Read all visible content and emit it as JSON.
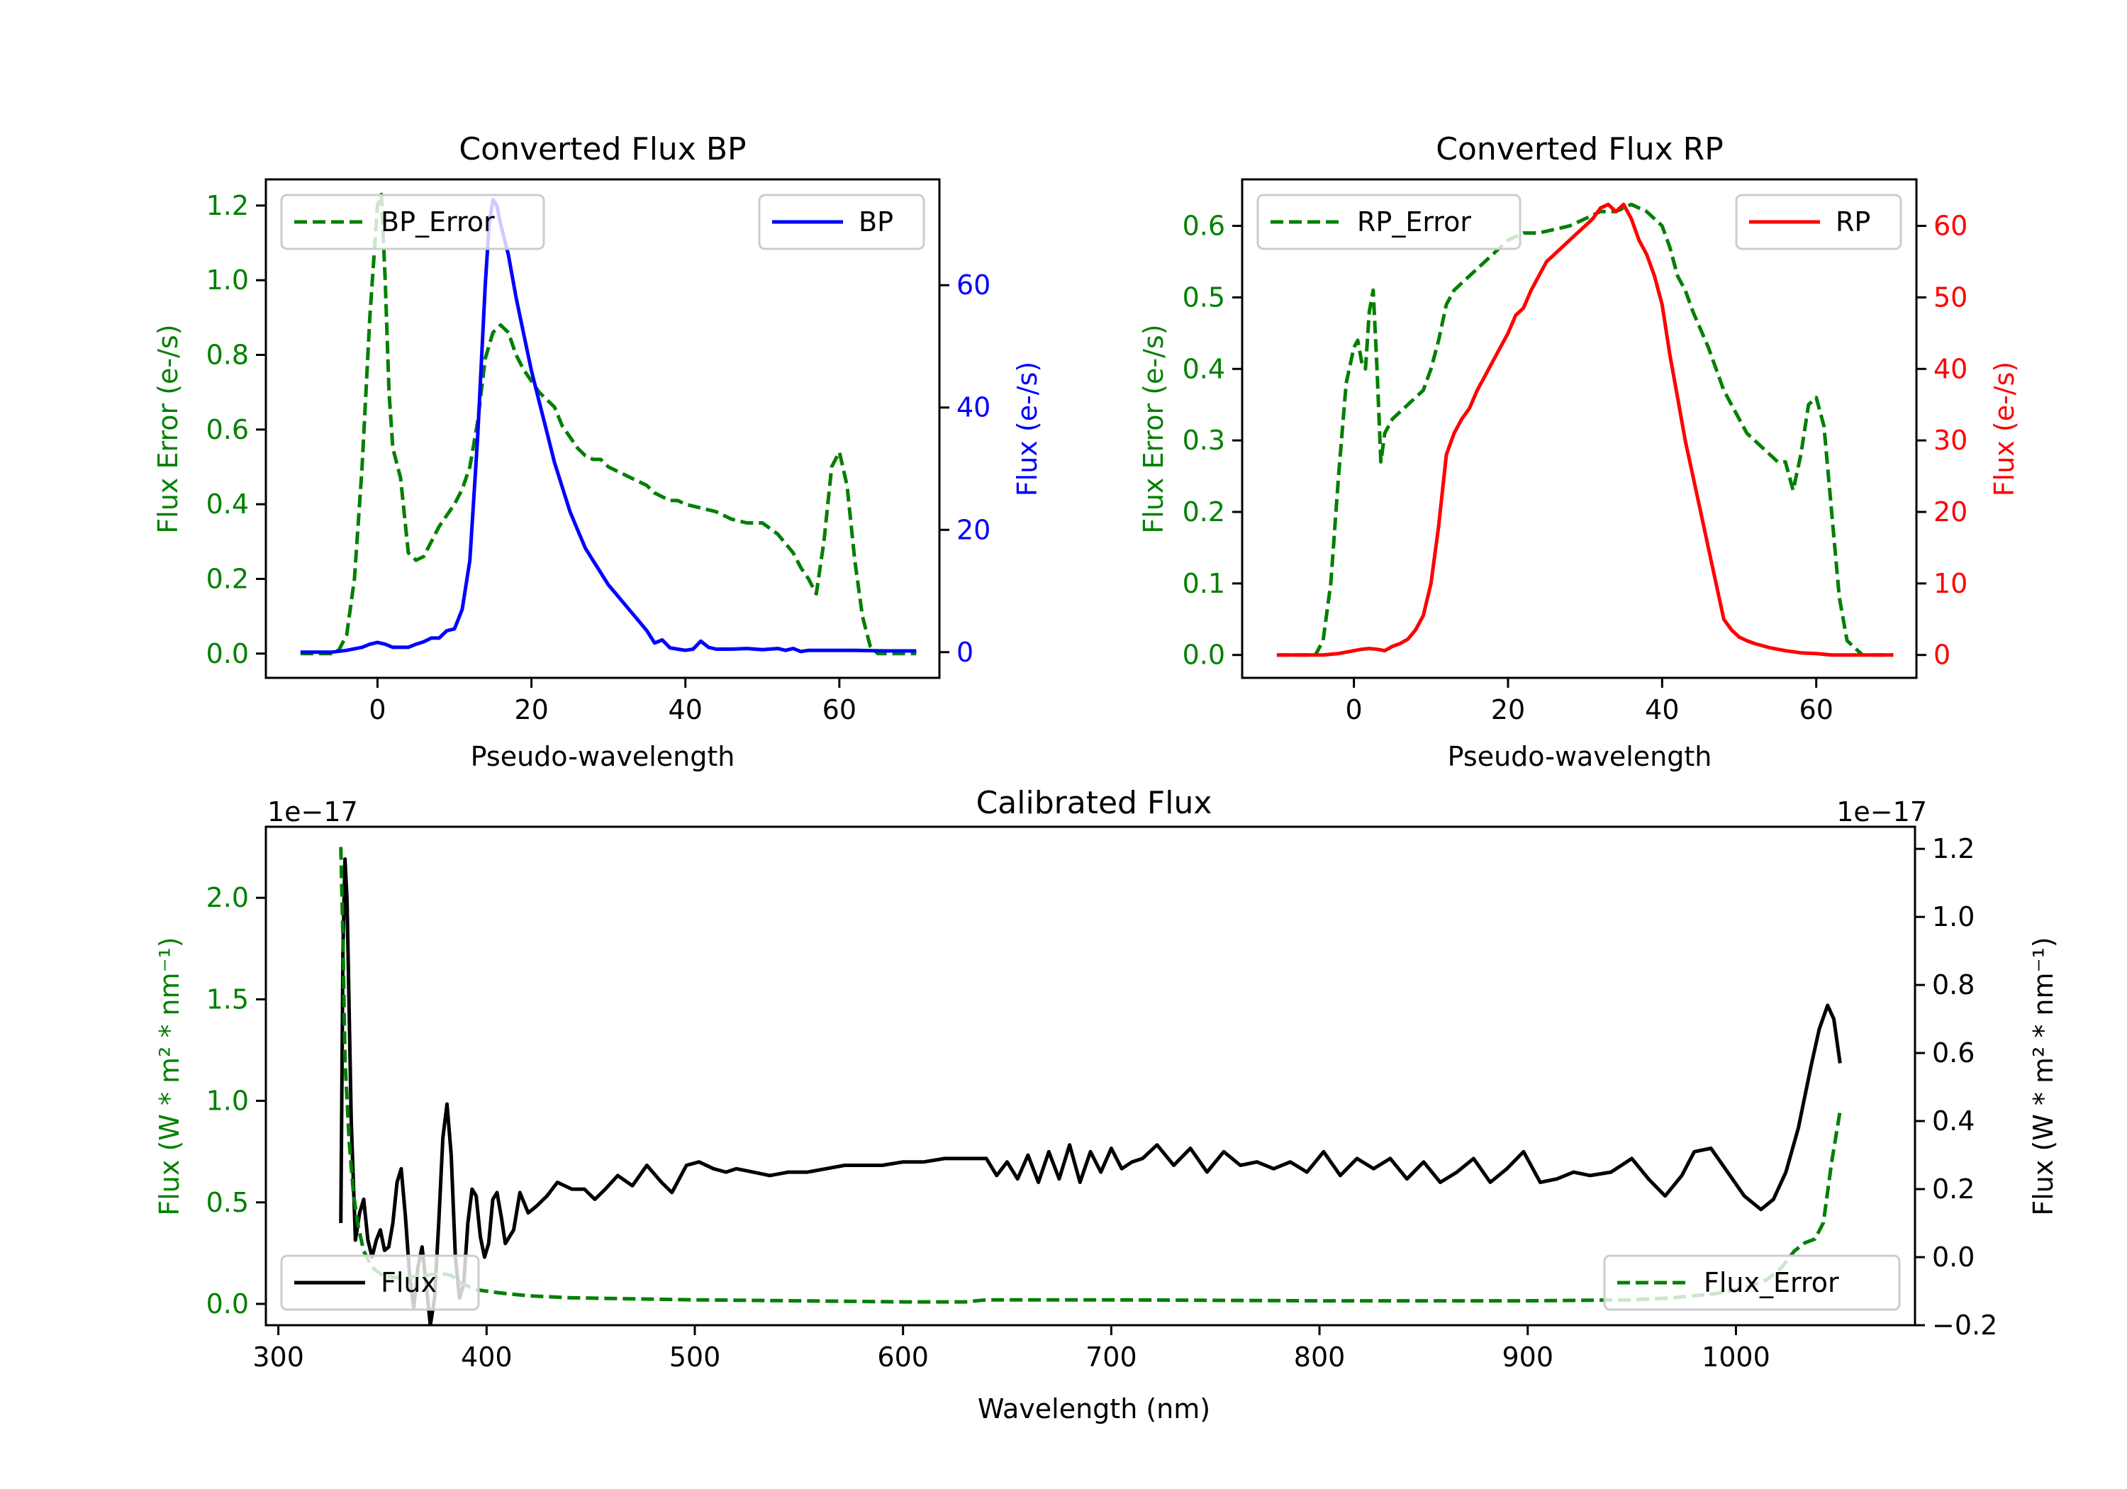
{
  "figure": {
    "colors": {
      "error": "#008000",
      "bp": "#0000ff",
      "rp": "#ff0000",
      "flux": "#000000",
      "axis": "#000000",
      "legend_border": "#cccccc"
    }
  },
  "chart_data": [
    {
      "id": "bp",
      "type": "line",
      "title": "Converted Flux BP",
      "xlabel": "Pseudo-wavelength",
      "ylabel_left": "Flux Error (e-/s)",
      "ylabel_right": "Flux (e-/s)",
      "xlim": [
        -14.5,
        73.0
      ],
      "ylim_left": [
        -0.065,
        1.27
      ],
      "ylim_right": [
        -4.2,
        77.3
      ],
      "xticks": [
        0,
        20,
        40,
        60
      ],
      "yticks_left": [
        0.0,
        0.2,
        0.4,
        0.6,
        0.8,
        1.0,
        1.2
      ],
      "ytick_labels_left": [
        "0.0",
        "0.2",
        "0.4",
        "0.6",
        "0.8",
        "1.0",
        "1.2"
      ],
      "yticks_right": [
        0,
        20,
        40,
        60
      ],
      "ytick_labels_right": [
        "0",
        "20",
        "40",
        "60"
      ],
      "legend_left": {
        "label": "BP_Error",
        "placement": "upper-left"
      },
      "legend_right": {
        "label": "BP",
        "placement": "upper-right"
      },
      "series": [
        {
          "name": "BP_Error",
          "axis": "left",
          "style": "dashed",
          "color_key": "error",
          "x": [
            -10,
            -8,
            -6,
            -5,
            -4,
            -3,
            -2,
            -1,
            0,
            0.5,
            1,
            1.5,
            2,
            3,
            4,
            5,
            6,
            7,
            8,
            9,
            10,
            11,
            12,
            13,
            14,
            15,
            16,
            17,
            18,
            19,
            20,
            21,
            22,
            23,
            24,
            25,
            26,
            27,
            28,
            29,
            30,
            31,
            32,
            33,
            34,
            35,
            36,
            37,
            38,
            39,
            40,
            42,
            44,
            46,
            48,
            50,
            52,
            54,
            55,
            56,
            57,
            58,
            59,
            60,
            61,
            62,
            63,
            64,
            65,
            67,
            70
          ],
          "y": [
            0.0,
            0.0,
            0.0,
            0.01,
            0.05,
            0.2,
            0.5,
            0.9,
            1.2,
            1.23,
            1.0,
            0.7,
            0.55,
            0.47,
            0.27,
            0.25,
            0.26,
            0.3,
            0.34,
            0.37,
            0.4,
            0.44,
            0.5,
            0.62,
            0.79,
            0.86,
            0.88,
            0.86,
            0.8,
            0.76,
            0.73,
            0.7,
            0.68,
            0.66,
            0.61,
            0.58,
            0.55,
            0.53,
            0.52,
            0.52,
            0.5,
            0.49,
            0.48,
            0.47,
            0.46,
            0.45,
            0.43,
            0.42,
            0.41,
            0.41,
            0.4,
            0.39,
            0.38,
            0.36,
            0.35,
            0.35,
            0.32,
            0.27,
            0.23,
            0.2,
            0.16,
            0.3,
            0.5,
            0.54,
            0.45,
            0.25,
            0.1,
            0.02,
            0.0,
            0.0,
            0.0
          ]
        },
        {
          "name": "BP",
          "axis": "right",
          "style": "solid",
          "color_key": "bp",
          "x": [
            -10,
            -6,
            -4,
            -2,
            -1,
            0,
            1,
            2,
            3,
            4,
            5,
            6,
            7,
            8,
            9,
            10,
            11,
            12,
            13,
            14,
            14.5,
            15,
            15.5,
            16,
            17,
            18,
            19,
            20,
            21,
            22,
            23,
            24,
            25,
            26,
            27,
            28,
            29,
            30,
            31,
            32,
            33,
            34,
            35,
            36,
            37,
            38,
            39,
            40,
            41,
            42,
            43,
            44,
            46,
            48,
            50,
            52,
            53,
            54,
            55,
            56,
            58,
            62,
            66,
            70
          ],
          "y": [
            0,
            0,
            0.3,
            0.8,
            1.3,
            1.6,
            1.3,
            0.8,
            0.8,
            0.8,
            1.3,
            1.7,
            2.3,
            2.3,
            3.5,
            3.8,
            7,
            15,
            35,
            60,
            70,
            74,
            73,
            70,
            65,
            58,
            52,
            46,
            41,
            36,
            31,
            27,
            23,
            20,
            17,
            15,
            13,
            11,
            9.5,
            8,
            6.5,
            5,
            3.5,
            1.5,
            2,
            0.7,
            0.5,
            0.3,
            0.5,
            1.8,
            0.8,
            0.5,
            0.5,
            0.6,
            0.4,
            0.6,
            0.3,
            0.6,
            0.1,
            0.3,
            0.3,
            0.3,
            0.2,
            0.2
          ]
        }
      ]
    },
    {
      "id": "rp",
      "type": "line",
      "title": "Converted Flux RP",
      "xlabel": "Pseudo-wavelength",
      "ylabel_left": "Flux Error (e-/s)",
      "ylabel_right": "Flux (e-/s)",
      "xlim": [
        -14.5,
        73.0
      ],
      "ylim_left": [
        -0.032,
        0.665
      ],
      "ylim_right": [
        -3.2,
        66.5
      ],
      "xticks": [
        0,
        20,
        40,
        60
      ],
      "yticks_left": [
        0.0,
        0.1,
        0.2,
        0.3,
        0.4,
        0.5,
        0.6
      ],
      "ytick_labels_left": [
        "0.0",
        "0.1",
        "0.2",
        "0.3",
        "0.4",
        "0.5",
        "0.6"
      ],
      "yticks_right": [
        0,
        10,
        20,
        30,
        40,
        50,
        60
      ],
      "ytick_labels_right": [
        "0",
        "10",
        "20",
        "30",
        "40",
        "50",
        "60"
      ],
      "legend_left": {
        "label": "RP_Error",
        "placement": "upper-left"
      },
      "legend_right": {
        "label": "RP",
        "placement": "upper-right"
      },
      "series": [
        {
          "name": "RP_Error",
          "axis": "left",
          "style": "dashed",
          "color_key": "error",
          "x": [
            -10,
            -5,
            -4,
            -3,
            -2,
            -1,
            0,
            0.5,
            1,
            1.5,
            2,
            2.5,
            3,
            3.5,
            4,
            5,
            6,
            7,
            8,
            9,
            10,
            11,
            12,
            13,
            14,
            16,
            18,
            20,
            22,
            24,
            26,
            28,
            30,
            32,
            34,
            36,
            38,
            40,
            41,
            42,
            43,
            44,
            46,
            48,
            50,
            51,
            52,
            54,
            55,
            56,
            57,
            58,
            59,
            60,
            61,
            62,
            63,
            64,
            66,
            70
          ],
          "y": [
            0.0,
            0.0,
            0.02,
            0.1,
            0.25,
            0.38,
            0.43,
            0.44,
            0.41,
            0.4,
            0.48,
            0.51,
            0.4,
            0.27,
            0.31,
            0.33,
            0.34,
            0.35,
            0.36,
            0.37,
            0.4,
            0.44,
            0.49,
            0.51,
            0.52,
            0.54,
            0.56,
            0.58,
            0.59,
            0.59,
            0.595,
            0.6,
            0.61,
            0.62,
            0.62,
            0.63,
            0.62,
            0.6,
            0.57,
            0.53,
            0.51,
            0.48,
            0.43,
            0.37,
            0.33,
            0.31,
            0.3,
            0.28,
            0.27,
            0.27,
            0.23,
            0.28,
            0.35,
            0.36,
            0.32,
            0.2,
            0.08,
            0.02,
            0.0,
            0.0
          ]
        },
        {
          "name": "RP",
          "axis": "right",
          "style": "solid",
          "color_key": "rp",
          "x": [
            -10,
            -4,
            -2,
            0,
            1,
            2,
            3,
            4,
            5,
            6,
            7,
            8,
            9,
            10,
            11,
            12,
            13,
            14,
            15,
            16,
            17,
            18,
            19,
            20,
            21,
            22,
            23,
            24,
            25,
            26,
            27,
            28,
            29,
            30,
            31,
            32,
            33,
            34,
            35,
            36,
            37,
            38,
            39,
            40,
            41,
            42,
            43,
            44,
            45,
            46,
            47,
            48,
            49,
            50,
            51,
            52,
            54,
            56,
            58,
            60,
            62,
            66,
            70
          ],
          "y": [
            0,
            0,
            0.2,
            0.6,
            0.8,
            0.9,
            0.8,
            0.6,
            1.2,
            1.6,
            2.2,
            3.5,
            5.5,
            10,
            18,
            28,
            31,
            33,
            34.5,
            37,
            39,
            41,
            43,
            45,
            47.5,
            48.5,
            51,
            53,
            55,
            56,
            57,
            58,
            59,
            60,
            61,
            62.5,
            63,
            62,
            63,
            61,
            58,
            56,
            53,
            49,
            42,
            36,
            30,
            25,
            20,
            15,
            10,
            5,
            3.5,
            2.5,
            2,
            1.6,
            1,
            0.6,
            0.3,
            0.2,
            0,
            0,
            0
          ]
        }
      ]
    },
    {
      "id": "calibrated",
      "type": "line",
      "title": "Calibrated Flux",
      "xlabel": "Wavelength (nm)",
      "ylabel_left": "Flux (W * m² * nm⁻¹)",
      "ylabel_right": "Flux (W * m² * nm⁻¹)",
      "offset_left": "1e−17",
      "offset_right": "1e−17",
      "xlim": [
        294,
        1086
      ],
      "ylim_left": [
        -0.105,
        2.35
      ],
      "ylim_right": [
        -0.2,
        1.265
      ],
      "xticks": [
        300,
        400,
        500,
        600,
        700,
        800,
        900,
        1000
      ],
      "yticks_left": [
        0.0,
        0.5,
        1.0,
        1.5,
        2.0
      ],
      "ytick_labels_left": [
        "0.0",
        "0.5",
        "1.0",
        "1.5",
        "2.0"
      ],
      "yticks_right": [
        -0.2,
        0.0,
        0.2,
        0.4,
        0.6,
        0.8,
        1.0,
        1.2
      ],
      "ytick_labels_right": [
        "−0.2",
        "0.0",
        "0.2",
        "0.4",
        "0.6",
        "0.8",
        "1.0",
        "1.2"
      ],
      "legend_left": {
        "label": "Flux",
        "placement": "lower-left"
      },
      "legend_right": {
        "label": "Flux_Error",
        "placement": "lower-right"
      },
      "series": [
        {
          "name": "Flux",
          "axis": "right",
          "style": "solid",
          "color_key": "flux",
          "x": [
            330,
            331,
            332,
            333,
            335,
            337,
            339,
            341,
            343,
            345,
            347,
            349,
            351,
            353,
            355,
            357,
            359,
            361,
            363,
            365,
            367,
            369,
            371,
            373,
            375,
            377,
            379,
            381,
            383,
            385,
            387,
            389,
            391,
            393,
            395,
            397,
            399,
            401,
            403,
            405,
            407,
            409,
            413,
            416,
            420,
            424,
            429,
            434,
            441,
            447,
            452,
            457,
            463,
            470,
            477,
            484,
            489,
            496,
            502,
            509,
            515,
            520,
            528,
            536,
            545,
            554,
            563,
            572,
            580,
            590,
            600,
            610,
            620,
            630,
            635,
            640,
            645,
            650,
            655,
            660,
            665,
            670,
            675,
            680,
            685,
            690,
            695,
            700,
            705,
            710,
            715,
            722,
            730,
            738,
            746,
            754,
            762,
            770,
            778,
            786,
            794,
            802,
            810,
            818,
            826,
            834,
            842,
            850,
            858,
            866,
            874,
            882,
            890,
            898,
            906,
            914,
            922,
            930,
            940,
            950,
            958,
            966,
            974,
            980,
            988,
            996,
            1004,
            1012,
            1018,
            1024,
            1030,
            1036,
            1040,
            1044,
            1047,
            1050
          ],
          "y": [
            0.1,
            0.9,
            1.17,
            1.05,
            0.4,
            0.05,
            0.13,
            0.17,
            0.05,
            0.0,
            0.05,
            0.08,
            0.02,
            0.03,
            0.1,
            0.22,
            0.26,
            0.12,
            -0.05,
            -0.15,
            -0.03,
            0.03,
            -0.08,
            -0.2,
            -0.12,
            0.1,
            0.35,
            0.45,
            0.3,
            0.0,
            -0.12,
            -0.08,
            0.1,
            0.2,
            0.18,
            0.06,
            0.0,
            0.04,
            0.17,
            0.19,
            0.12,
            0.04,
            0.08,
            0.19,
            0.13,
            0.15,
            0.18,
            0.22,
            0.2,
            0.2,
            0.17,
            0.2,
            0.24,
            0.21,
            0.27,
            0.22,
            0.19,
            0.27,
            0.28,
            0.26,
            0.25,
            0.26,
            0.25,
            0.24,
            0.25,
            0.25,
            0.26,
            0.27,
            0.27,
            0.27,
            0.28,
            0.28,
            0.29,
            0.29,
            0.29,
            0.29,
            0.24,
            0.28,
            0.23,
            0.3,
            0.22,
            0.31,
            0.23,
            0.33,
            0.22,
            0.31,
            0.25,
            0.32,
            0.26,
            0.28,
            0.29,
            0.33,
            0.27,
            0.32,
            0.25,
            0.31,
            0.27,
            0.28,
            0.26,
            0.28,
            0.25,
            0.31,
            0.24,
            0.29,
            0.26,
            0.29,
            0.23,
            0.28,
            0.22,
            0.25,
            0.29,
            0.22,
            0.26,
            0.31,
            0.22,
            0.23,
            0.25,
            0.24,
            0.25,
            0.29,
            0.23,
            0.18,
            0.24,
            0.31,
            0.32,
            0.25,
            0.18,
            0.14,
            0.17,
            0.25,
            0.38,
            0.56,
            0.67,
            0.74,
            0.7,
            0.57
          ]
        },
        {
          "name": "Flux_Error",
          "axis": "left",
          "style": "dashed",
          "color_key": "error",
          "x": [
            330,
            331,
            332,
            334,
            336,
            338,
            341,
            345,
            350,
            356,
            362,
            370,
            378,
            383,
            388,
            395,
            402,
            410,
            420,
            440,
            470,
            500,
            550,
            600,
            630,
            640,
            700,
            800,
            900,
            950,
            970,
            990,
            1005,
            1015,
            1022,
            1028,
            1033,
            1038,
            1042,
            1046,
            1050
          ],
          "y": [
            2.25,
            1.8,
            1.2,
            0.8,
            0.55,
            0.4,
            0.26,
            0.18,
            0.14,
            0.13,
            0.13,
            0.14,
            0.15,
            0.14,
            0.1,
            0.07,
            0.06,
            0.05,
            0.04,
            0.03,
            0.025,
            0.02,
            0.015,
            0.01,
            0.01,
            0.02,
            0.02,
            0.015,
            0.015,
            0.02,
            0.03,
            0.05,
            0.08,
            0.12,
            0.18,
            0.26,
            0.3,
            0.32,
            0.4,
            0.7,
            0.95
          ]
        }
      ]
    }
  ]
}
